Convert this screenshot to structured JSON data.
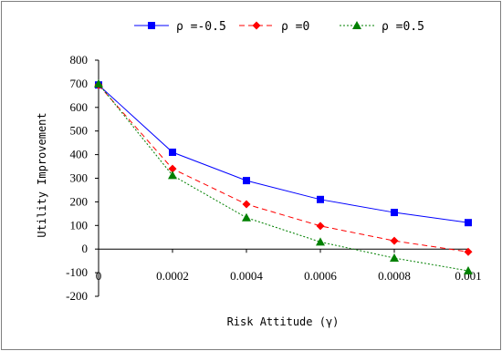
{
  "chart_data": {
    "type": "line",
    "title": "",
    "xlabel": "Risk Attitude (γ)",
    "ylabel": "Utility Improvement",
    "x": [
      0,
      0.0002,
      0.0004,
      0.0006,
      0.0008,
      0.001
    ],
    "x_tick_labels": [
      "0",
      "0.0002",
      "0.0004",
      "0.0006",
      "0.0008",
      "0.001"
    ],
    "y_ticks": [
      -200,
      -100,
      0,
      100,
      200,
      300,
      400,
      500,
      600,
      700,
      800
    ],
    "ylim": [
      -200,
      800
    ],
    "xlim": [
      0,
      0.001
    ],
    "grid": false,
    "legend_position": "top",
    "series": [
      {
        "name": "ρ =-0.5",
        "color": "#0000ff",
        "marker": "square",
        "dash": "solid",
        "values": [
          695,
          410,
          290,
          210,
          155,
          112
        ]
      },
      {
        "name": "ρ =0",
        "color": "#ff0000",
        "marker": "diamond",
        "dash": "dashed",
        "values": [
          695,
          340,
          190,
          98,
          35,
          -12
        ]
      },
      {
        "name": "ρ =0.5",
        "color": "#008000",
        "marker": "triangle",
        "dash": "dotted",
        "values": [
          700,
          312,
          133,
          30,
          -38,
          -92
        ]
      }
    ]
  }
}
